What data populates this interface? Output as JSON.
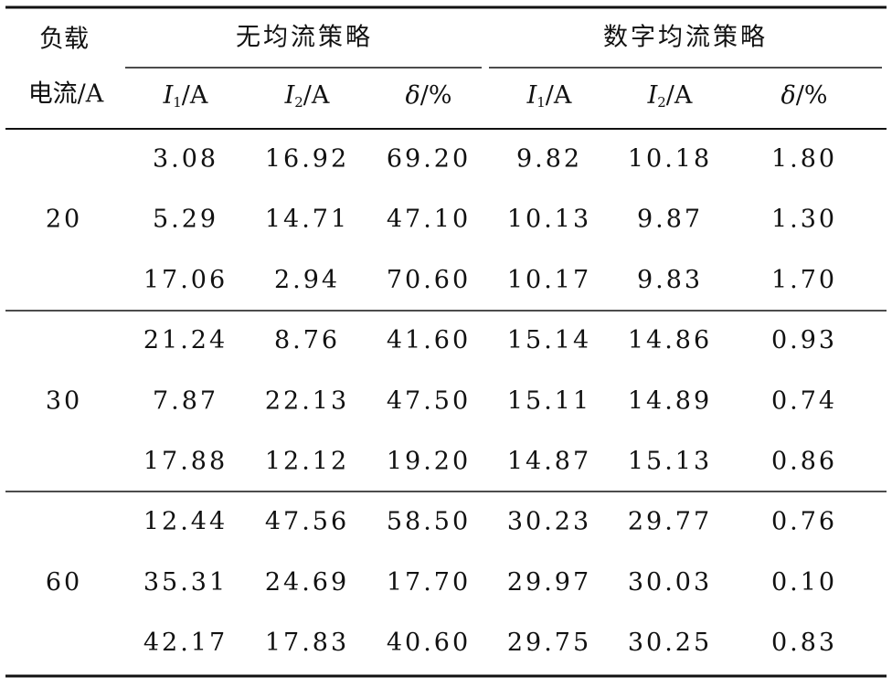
{
  "table": {
    "load_header": [
      "负载",
      "电流/A"
    ],
    "groups": [
      "无均流策略",
      "数字均流策略"
    ],
    "subheaders": [
      {
        "symbol": "I",
        "sub": "1",
        "unit": "/A"
      },
      {
        "symbol": "I",
        "sub": "2",
        "unit": "/A"
      },
      {
        "symbol": "δ",
        "unit": "/%"
      },
      {
        "symbol": "I",
        "sub": "1",
        "unit": "/A"
      },
      {
        "symbol": "I",
        "sub": "2",
        "unit": "/A"
      },
      {
        "symbol": "δ",
        "unit": "/%"
      }
    ],
    "blocks": [
      {
        "load": "20",
        "rows": [
          [
            "3.08",
            "16.92",
            "69.20",
            "9.82",
            "10.18",
            "1.80"
          ],
          [
            "5.29",
            "14.71",
            "47.10",
            "10.13",
            "9.87",
            "1.30"
          ],
          [
            "17.06",
            "2.94",
            "70.60",
            "10.17",
            "9.83",
            "1.70"
          ]
        ]
      },
      {
        "load": "30",
        "rows": [
          [
            "21.24",
            "8.76",
            "41.60",
            "15.14",
            "14.86",
            "0.93"
          ],
          [
            "7.87",
            "22.13",
            "47.50",
            "15.11",
            "14.89",
            "0.74"
          ],
          [
            "17.88",
            "12.12",
            "19.20",
            "14.87",
            "15.13",
            "0.86"
          ]
        ]
      },
      {
        "load": "60",
        "rows": [
          [
            "12.44",
            "47.56",
            "58.50",
            "30.23",
            "29.77",
            "0.76"
          ],
          [
            "35.31",
            "24.69",
            "17.70",
            "29.97",
            "30.03",
            "0.10"
          ],
          [
            "42.17",
            "17.83",
            "40.60",
            "29.75",
            "30.25",
            "0.83"
          ]
        ]
      }
    ]
  }
}
